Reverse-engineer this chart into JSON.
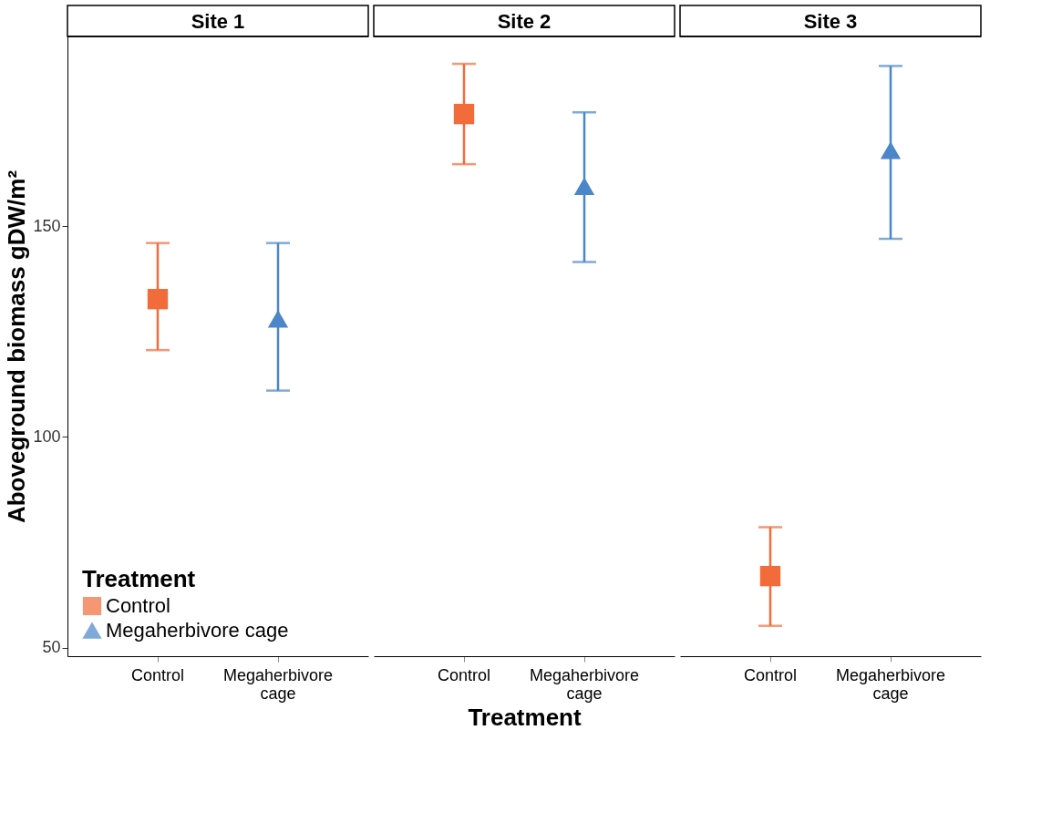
{
  "chart_data": [
    {
      "type": "scatter",
      "title": "Site 1",
      "categories": [
        "Control",
        "Megaherbivore cage"
      ],
      "ylabel": "Aboveground biomass gDW/m²",
      "legend_title": "Treatment",
      "legend": "bottom left",
      "ylim": [
        48,
        195
      ],
      "yticks": [
        50,
        100,
        150
      ],
      "grid": false,
      "series": [
        {
          "name": "Control",
          "color": "#f26b3a",
          "marker": "square",
          "values": [
            132.7,
            null
          ],
          "errors": [
            [
              120.6,
              146
            ],
            null
          ]
        },
        {
          "name": "Megaherbivore cage",
          "color": "#4a86c8",
          "marker": "triangle",
          "values": [
            null,
            128
          ],
          "errors": [
            null,
            [
              111,
              146
            ]
          ]
        }
      ]
    },
    {
      "type": "scatter",
      "title": "Site 2",
      "categories": [
        "Control",
        "Megaherbivore cage"
      ],
      "xlabel": "Treatment",
      "ylim": [
        48,
        195
      ],
      "tick_labels": "x",
      "grid": false,
      "series": [
        {
          "color": "#f26b3a",
          "marker": "square",
          "values": [
            176.6,
            null
          ],
          "errors": [
            [
              164.7,
              188.5
            ],
            null
          ]
        },
        {
          "color": "#4a86c8",
          "marker": "triangle",
          "values": [
            null,
            159.5
          ],
          "errors": [
            null,
            [
              141.5,
              177
            ]
          ]
        }
      ]
    },
    {
      "type": "scatter",
      "title": "Site 3",
      "categories": [
        "Control",
        "Megaherbivore cage"
      ],
      "ylim": [
        48,
        195
      ],
      "tick_labels": "x",
      "grid": false,
      "series": [
        {
          "color": "#f26b3a",
          "marker": "square",
          "values": [
            67,
            null
          ],
          "errors": [
            [
              55.2,
              78.6
            ],
            null
          ]
        },
        {
          "color": "#4a86c8",
          "marker": "triangle",
          "values": [
            null,
            168
          ],
          "errors": [
            null,
            [
              147,
              188
            ]
          ]
        }
      ]
    }
  ]
}
